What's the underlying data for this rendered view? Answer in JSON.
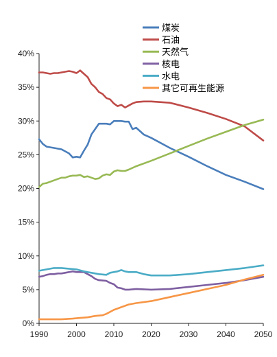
{
  "chart_data": {
    "type": "line",
    "title": "",
    "xlabel": "",
    "ylabel": "",
    "xlim": [
      1990,
      2050
    ],
    "ylim": [
      0,
      40
    ],
    "x_ticks": [
      1990,
      2000,
      2010,
      2020,
      2030,
      2040,
      2050
    ],
    "y_ticks": [
      0,
      5,
      10,
      15,
      20,
      25,
      30,
      35,
      40
    ],
    "y_tick_labels": [
      "0%",
      "5%",
      "10%",
      "15%",
      "20%",
      "25%",
      "30%",
      "35%",
      "40%"
    ],
    "x_tick_labels": [
      "1990",
      "2000",
      "2010",
      "2020",
      "2030",
      "2040",
      "2050"
    ],
    "legend_position": "top-center",
    "grid": false,
    "series": [
      {
        "name": "煤炭",
        "color": "#4a7ebb",
        "points": [
          [
            1990,
            27.3
          ],
          [
            1991,
            26.6
          ],
          [
            1992,
            26.2
          ],
          [
            1994,
            26.0
          ],
          [
            1996,
            25.8
          ],
          [
            1998,
            25.2
          ],
          [
            1999,
            24.6
          ],
          [
            2000,
            24.7
          ],
          [
            2001,
            24.6
          ],
          [
            2002,
            25.6
          ],
          [
            2003,
            26.5
          ],
          [
            2004,
            28.0
          ],
          [
            2006,
            29.6
          ],
          [
            2008,
            29.6
          ],
          [
            2009,
            29.5
          ],
          [
            2010,
            30.0
          ],
          [
            2012,
            30.0
          ],
          [
            2013,
            29.9
          ],
          [
            2014,
            29.9
          ],
          [
            2015,
            28.8
          ],
          [
            2016,
            29.0
          ],
          [
            2017,
            28.5
          ],
          [
            2018,
            28.0
          ],
          [
            2020,
            27.5
          ],
          [
            2025,
            26.0
          ],
          [
            2030,
            24.7
          ],
          [
            2035,
            23.3
          ],
          [
            2040,
            22.0
          ],
          [
            2045,
            21.0
          ],
          [
            2050,
            19.9
          ]
        ]
      },
      {
        "name": "石油",
        "color": "#be4b48",
        "points": [
          [
            1990,
            37.2
          ],
          [
            1991,
            37.2
          ],
          [
            1992,
            37.1
          ],
          [
            1993,
            37.0
          ],
          [
            1994,
            37.1
          ],
          [
            1995,
            37.1
          ],
          [
            1996,
            37.2
          ],
          [
            1998,
            37.4
          ],
          [
            1999,
            37.3
          ],
          [
            2000,
            37.1
          ],
          [
            2001,
            37.5
          ],
          [
            2002,
            37.0
          ],
          [
            2003,
            36.5
          ],
          [
            2004,
            35.5
          ],
          [
            2005,
            35.0
          ],
          [
            2006,
            34.3
          ],
          [
            2007,
            34.0
          ],
          [
            2008,
            33.4
          ],
          [
            2009,
            33.2
          ],
          [
            2010,
            32.6
          ],
          [
            2011,
            32.2
          ],
          [
            2012,
            32.4
          ],
          [
            2013,
            32.0
          ],
          [
            2014,
            32.3
          ],
          [
            2015,
            32.6
          ],
          [
            2016,
            32.8
          ],
          [
            2018,
            32.9
          ],
          [
            2020,
            32.9
          ],
          [
            2025,
            32.7
          ],
          [
            2030,
            32.0
          ],
          [
            2035,
            31.2
          ],
          [
            2040,
            30.3
          ],
          [
            2045,
            29.2
          ],
          [
            2050,
            27.1
          ]
        ]
      },
      {
        "name": "天然气",
        "color": "#98b954",
        "points": [
          [
            1990,
            20.2
          ],
          [
            1991,
            20.7
          ],
          [
            1992,
            20.8
          ],
          [
            1993,
            21.0
          ],
          [
            1994,
            21.2
          ],
          [
            1995,
            21.4
          ],
          [
            1996,
            21.6
          ],
          [
            1997,
            21.6
          ],
          [
            1998,
            21.8
          ],
          [
            1999,
            21.9
          ],
          [
            2000,
            21.9
          ],
          [
            2001,
            22.0
          ],
          [
            2002,
            21.7
          ],
          [
            2003,
            21.8
          ],
          [
            2004,
            21.6
          ],
          [
            2005,
            21.4
          ],
          [
            2006,
            21.5
          ],
          [
            2007,
            21.9
          ],
          [
            2008,
            22.1
          ],
          [
            2009,
            22.0
          ],
          [
            2010,
            22.5
          ],
          [
            2011,
            22.7
          ],
          [
            2012,
            22.6
          ],
          [
            2013,
            22.6
          ],
          [
            2014,
            22.8
          ],
          [
            2016,
            23.3
          ],
          [
            2020,
            24.1
          ],
          [
            2025,
            25.2
          ],
          [
            2030,
            26.3
          ],
          [
            2035,
            27.4
          ],
          [
            2040,
            28.4
          ],
          [
            2045,
            29.4
          ],
          [
            2050,
            30.2
          ]
        ]
      },
      {
        "name": "核电",
        "color": "#7e5fa1",
        "points": [
          [
            1990,
            6.9
          ],
          [
            1991,
            7.0
          ],
          [
            1992,
            7.2
          ],
          [
            1993,
            7.3
          ],
          [
            1994,
            7.3
          ],
          [
            1995,
            7.4
          ],
          [
            1996,
            7.4
          ],
          [
            1997,
            7.5
          ],
          [
            1998,
            7.6
          ],
          [
            1999,
            7.7
          ],
          [
            2000,
            7.6
          ],
          [
            2001,
            7.6
          ],
          [
            2002,
            7.6
          ],
          [
            2003,
            7.3
          ],
          [
            2004,
            7.0
          ],
          [
            2005,
            6.6
          ],
          [
            2006,
            6.4
          ],
          [
            2008,
            6.3
          ],
          [
            2009,
            6.0
          ],
          [
            2010,
            5.8
          ],
          [
            2011,
            5.3
          ],
          [
            2012,
            5.2
          ],
          [
            2013,
            5.0
          ],
          [
            2014,
            5.0
          ],
          [
            2016,
            5.1
          ],
          [
            2020,
            5.0
          ],
          [
            2025,
            5.1
          ],
          [
            2030,
            5.4
          ],
          [
            2035,
            5.7
          ],
          [
            2040,
            6.0
          ],
          [
            2045,
            6.4
          ],
          [
            2050,
            6.9
          ]
        ]
      },
      {
        "name": "水电",
        "color": "#4bacc6",
        "points": [
          [
            1990,
            7.8
          ],
          [
            1992,
            8.0
          ],
          [
            1994,
            8.2
          ],
          [
            1996,
            8.2
          ],
          [
            1998,
            8.1
          ],
          [
            2000,
            8.0
          ],
          [
            2002,
            7.7
          ],
          [
            2004,
            7.5
          ],
          [
            2006,
            7.3
          ],
          [
            2008,
            7.2
          ],
          [
            2009,
            7.5
          ],
          [
            2010,
            7.6
          ],
          [
            2011,
            7.7
          ],
          [
            2012,
            7.9
          ],
          [
            2013,
            7.7
          ],
          [
            2014,
            7.6
          ],
          [
            2016,
            7.6
          ],
          [
            2018,
            7.3
          ],
          [
            2020,
            7.1
          ],
          [
            2025,
            7.1
          ],
          [
            2030,
            7.3
          ],
          [
            2035,
            7.6
          ],
          [
            2040,
            7.9
          ],
          [
            2045,
            8.2
          ],
          [
            2050,
            8.6
          ]
        ]
      },
      {
        "name": "其它可再生能源",
        "color": "#f79646",
        "points": [
          [
            1990,
            0.6
          ],
          [
            1993,
            0.6
          ],
          [
            1996,
            0.6
          ],
          [
            1999,
            0.7
          ],
          [
            2001,
            0.8
          ],
          [
            2003,
            0.9
          ],
          [
            2005,
            1.1
          ],
          [
            2007,
            1.2
          ],
          [
            2008,
            1.4
          ],
          [
            2010,
            2.0
          ],
          [
            2012,
            2.4
          ],
          [
            2014,
            2.8
          ],
          [
            2016,
            3.0
          ],
          [
            2020,
            3.3
          ],
          [
            2025,
            3.9
          ],
          [
            2030,
            4.5
          ],
          [
            2035,
            5.1
          ],
          [
            2040,
            5.7
          ],
          [
            2045,
            6.5
          ],
          [
            2050,
            7.2
          ]
        ]
      }
    ]
  }
}
